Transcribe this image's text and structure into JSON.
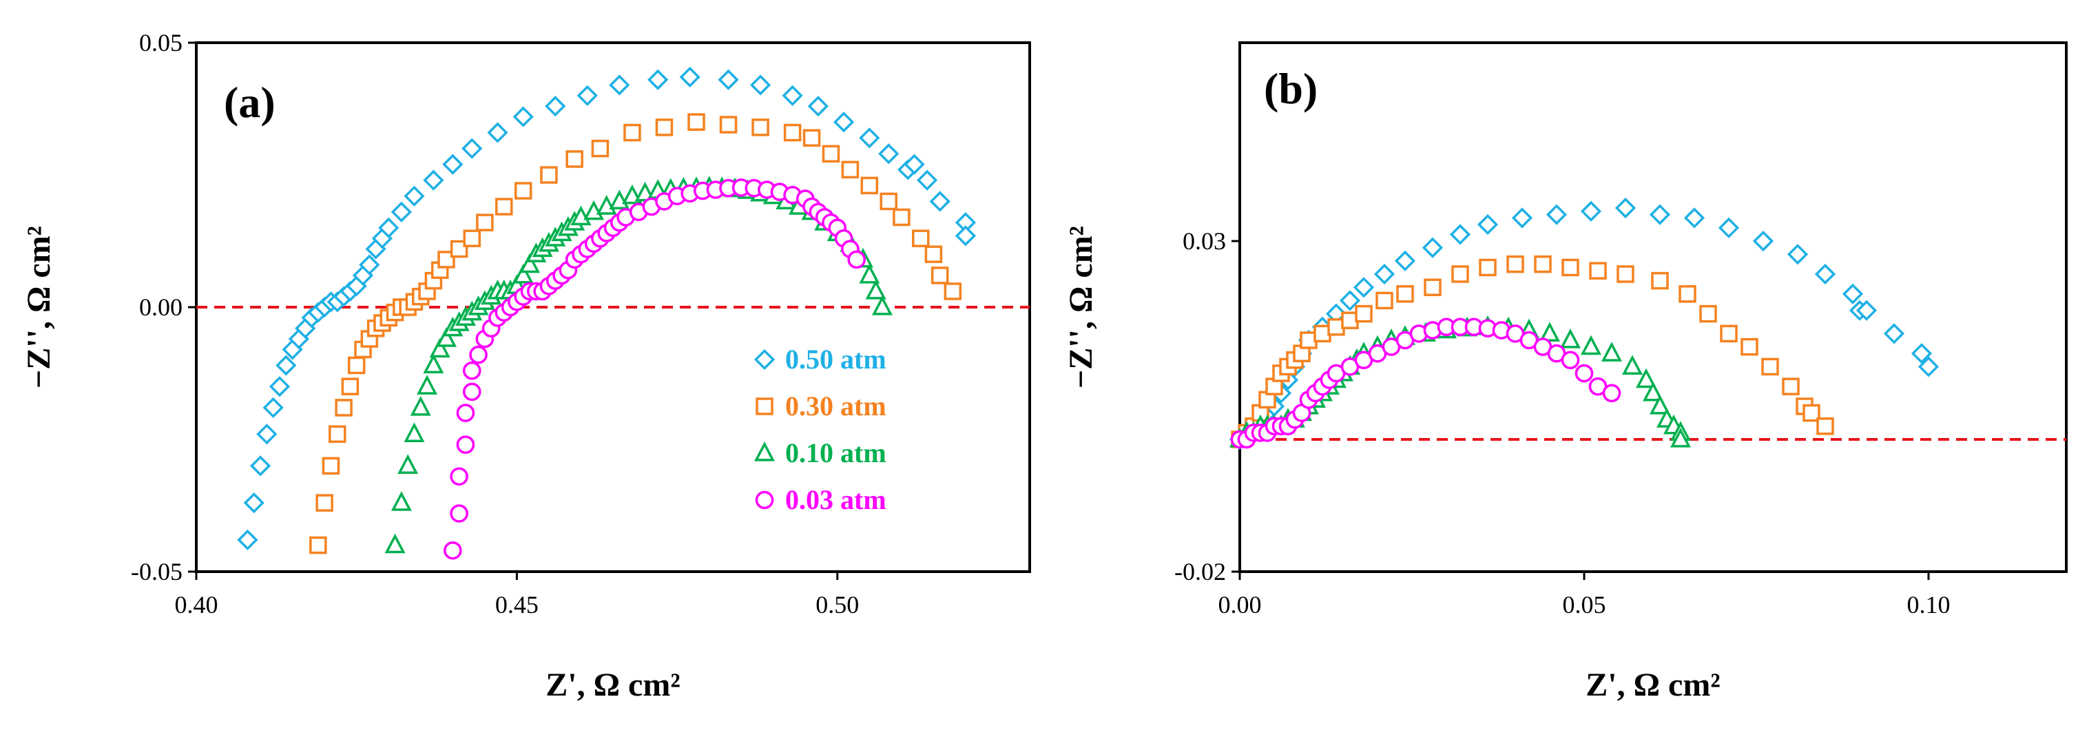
{
  "chart_data": [
    {
      "type": "scatter",
      "panel_label": "(a)",
      "xlabel": "Z', Ω cm²",
      "ylabel": "−Z'', Ω cm²",
      "xlim": [
        0.4,
        0.53
      ],
      "ylim": [
        -0.05,
        0.05
      ],
      "xticks": [
        0.4,
        0.45,
        0.5
      ],
      "xtick_labels": [
        "0.40",
        "0.45",
        "0.50"
      ],
      "yticks": [
        -0.05,
        0.0,
        0.05
      ],
      "ytick_labels": [
        "-0.05",
        "0.00",
        "0.05"
      ],
      "reference_line": {
        "y": 0,
        "style": "dashed",
        "color": "#e8141b"
      },
      "legend": {
        "placement": "lower-right"
      },
      "series": [
        {
          "name": "0.50 atm",
          "marker": "diamond",
          "color": "#1fb0e6",
          "x": [
            0.408,
            0.409,
            0.41,
            0.411,
            0.412,
            0.413,
            0.414,
            0.415,
            0.416,
            0.417,
            0.418,
            0.419,
            0.42,
            0.421,
            0.422,
            0.423,
            0.424,
            0.425,
            0.426,
            0.427,
            0.428,
            0.429,
            0.43,
            0.432,
            0.434,
            0.437,
            0.44,
            0.443,
            0.447,
            0.451,
            0.456,
            0.461,
            0.466,
            0.472,
            0.477,
            0.483,
            0.488,
            0.493,
            0.497,
            0.501,
            0.505,
            0.508,
            0.511,
            0.512,
            0.514,
            0.516,
            0.52,
            0.52
          ],
          "y": [
            -0.044,
            -0.037,
            -0.03,
            -0.024,
            -0.019,
            -0.015,
            -0.011,
            -0.008,
            -0.006,
            -0.004,
            -0.002,
            -0.001,
            0.0,
            0.001,
            0.001,
            0.002,
            0.003,
            0.004,
            0.006,
            0.008,
            0.011,
            0.013,
            0.015,
            0.018,
            0.021,
            0.024,
            0.027,
            0.03,
            0.033,
            0.036,
            0.038,
            0.04,
            0.042,
            0.043,
            0.0435,
            0.043,
            0.042,
            0.04,
            0.038,
            0.035,
            0.032,
            0.029,
            0.026,
            0.027,
            0.024,
            0.02,
            0.016,
            0.0135
          ]
        },
        {
          "name": "0.30 atm",
          "marker": "square",
          "color": "#f58220",
          "x": [
            0.419,
            0.42,
            0.421,
            0.422,
            0.423,
            0.424,
            0.425,
            0.426,
            0.427,
            0.428,
            0.429,
            0.43,
            0.431,
            0.432,
            0.433,
            0.434,
            0.435,
            0.436,
            0.437,
            0.438,
            0.439,
            0.441,
            0.443,
            0.445,
            0.448,
            0.451,
            0.455,
            0.459,
            0.463,
            0.468,
            0.473,
            0.478,
            0.483,
            0.488,
            0.493,
            0.496,
            0.499,
            0.502,
            0.505,
            0.508,
            0.51,
            0.513,
            0.515,
            0.516,
            0.518
          ],
          "y": [
            -0.045,
            -0.037,
            -0.03,
            -0.024,
            -0.019,
            -0.015,
            -0.011,
            -0.008,
            -0.006,
            -0.004,
            -0.003,
            -0.002,
            -0.001,
            0.0,
            0.0,
            0.001,
            0.002,
            0.003,
            0.005,
            0.007,
            0.009,
            0.011,
            0.013,
            0.016,
            0.019,
            0.022,
            0.025,
            0.028,
            0.03,
            0.033,
            0.034,
            0.035,
            0.0345,
            0.034,
            0.033,
            0.032,
            0.029,
            0.026,
            0.023,
            0.02,
            0.017,
            0.013,
            0.01,
            0.006,
            0.003
          ]
        },
        {
          "name": "0.10 atm",
          "marker": "triangle",
          "color": "#00b050",
          "x": [
            0.431,
            0.432,
            0.433,
            0.434,
            0.435,
            0.436,
            0.437,
            0.438,
            0.439,
            0.44,
            0.441,
            0.442,
            0.443,
            0.444,
            0.445,
            0.446,
            0.447,
            0.448,
            0.449,
            0.45,
            0.451,
            0.452,
            0.453,
            0.454,
            0.455,
            0.456,
            0.457,
            0.458,
            0.459,
            0.46,
            0.462,
            0.464,
            0.466,
            0.468,
            0.47,
            0.472,
            0.474,
            0.476,
            0.478,
            0.48,
            0.482,
            0.484,
            0.486,
            0.488,
            0.49,
            0.492,
            0.494,
            0.496,
            0.498,
            0.5,
            0.502,
            0.504,
            0.505,
            0.506,
            0.507
          ],
          "y": [
            -0.045,
            -0.037,
            -0.03,
            -0.024,
            -0.019,
            -0.015,
            -0.011,
            -0.008,
            -0.006,
            -0.004,
            -0.003,
            -0.002,
            -0.001,
            0.0,
            0.001,
            0.002,
            0.003,
            0.003,
            0.003,
            0.004,
            0.006,
            0.008,
            0.01,
            0.011,
            0.012,
            0.013,
            0.014,
            0.015,
            0.016,
            0.017,
            0.018,
            0.019,
            0.02,
            0.021,
            0.0215,
            0.022,
            0.0222,
            0.0224,
            0.0225,
            0.0226,
            0.0225,
            0.0223,
            0.022,
            0.0215,
            0.021,
            0.02,
            0.019,
            0.018,
            0.016,
            0.014,
            0.012,
            0.009,
            0.006,
            0.003,
            0.0
          ]
        },
        {
          "name": "0.03 atm",
          "marker": "circle",
          "color": "#ff00ff",
          "x": [
            0.44,
            0.441,
            0.441,
            0.442,
            0.442,
            0.443,
            0.443,
            0.444,
            0.445,
            0.446,
            0.447,
            0.448,
            0.449,
            0.45,
            0.451,
            0.452,
            0.453,
            0.454,
            0.455,
            0.456,
            0.457,
            0.458,
            0.459,
            0.46,
            0.461,
            0.462,
            0.463,
            0.464,
            0.465,
            0.466,
            0.467,
            0.469,
            0.471,
            0.473,
            0.475,
            0.477,
            0.479,
            0.481,
            0.483,
            0.485,
            0.487,
            0.489,
            0.491,
            0.493,
            0.495,
            0.496,
            0.497,
            0.498,
            0.499,
            0.5,
            0.501,
            0.502,
            0.503
          ],
          "y": [
            -0.046,
            -0.039,
            -0.032,
            -0.026,
            -0.02,
            -0.016,
            -0.012,
            -0.009,
            -0.006,
            -0.004,
            -0.002,
            -0.001,
            0.0,
            0.001,
            0.002,
            0.003,
            0.003,
            0.003,
            0.004,
            0.005,
            0.006,
            0.007,
            0.009,
            0.01,
            0.011,
            0.012,
            0.013,
            0.014,
            0.015,
            0.016,
            0.017,
            0.018,
            0.019,
            0.02,
            0.021,
            0.0215,
            0.022,
            0.0222,
            0.0225,
            0.0226,
            0.0225,
            0.0222,
            0.0218,
            0.0212,
            0.0205,
            0.019,
            0.018,
            0.017,
            0.016,
            0.015,
            0.013,
            0.011,
            0.009
          ]
        }
      ]
    },
    {
      "type": "scatter",
      "panel_label": "(b)",
      "xlabel": "Z', Ω cm²",
      "ylabel": "−Z'', Ω cm²",
      "xlim": [
        0.0,
        0.12
      ],
      "ylim": [
        -0.02,
        0.06
      ],
      "xticks": [
        0.0,
        0.05,
        0.1
      ],
      "xtick_labels": [
        "0.00",
        "0.05",
        "0.10"
      ],
      "yticks": [
        -0.02,
        0.03
      ],
      "ytick_labels": [
        "-0.02",
        "0.03"
      ],
      "reference_line": {
        "y": 0,
        "style": "dashed",
        "color": "#e8141b"
      },
      "series": [
        {
          "name": "0.50 atm",
          "marker": "diamond",
          "color": "#1fb0e6",
          "x": [
            0.0,
            0.001,
            0.002,
            0.003,
            0.004,
            0.005,
            0.006,
            0.007,
            0.008,
            0.009,
            0.01,
            0.012,
            0.014,
            0.016,
            0.018,
            0.021,
            0.024,
            0.028,
            0.032,
            0.036,
            0.041,
            0.046,
            0.051,
            0.056,
            0.061,
            0.066,
            0.071,
            0.076,
            0.081,
            0.085,
            0.089,
            0.09,
            0.091,
            0.095,
            0.099,
            0.1
          ],
          "y": [
            0.0,
            0.001,
            0.002,
            0.003,
            0.004,
            0.005,
            0.007,
            0.009,
            0.011,
            0.013,
            0.015,
            0.017,
            0.019,
            0.021,
            0.023,
            0.025,
            0.027,
            0.029,
            0.031,
            0.0325,
            0.0335,
            0.034,
            0.0345,
            0.035,
            0.034,
            0.0335,
            0.032,
            0.03,
            0.028,
            0.025,
            0.022,
            0.0195,
            0.0195,
            0.016,
            0.013,
            0.011
          ]
        },
        {
          "name": "0.30 atm",
          "marker": "square",
          "color": "#f58220",
          "x": [
            0.0,
            0.001,
            0.002,
            0.003,
            0.004,
            0.005,
            0.006,
            0.007,
            0.008,
            0.009,
            0.01,
            0.012,
            0.014,
            0.016,
            0.018,
            0.021,
            0.024,
            0.028,
            0.032,
            0.036,
            0.04,
            0.044,
            0.048,
            0.052,
            0.056,
            0.061,
            0.065,
            0.068,
            0.071,
            0.074,
            0.077,
            0.08,
            0.082,
            0.083,
            0.085
          ],
          "y": [
            0.0,
            0.001,
            0.002,
            0.004,
            0.006,
            0.008,
            0.01,
            0.011,
            0.012,
            0.013,
            0.015,
            0.016,
            0.017,
            0.018,
            0.019,
            0.021,
            0.022,
            0.023,
            0.025,
            0.026,
            0.0265,
            0.0265,
            0.026,
            0.0255,
            0.025,
            0.024,
            0.022,
            0.019,
            0.016,
            0.014,
            0.011,
            0.008,
            0.005,
            0.004,
            0.002
          ]
        },
        {
          "name": "0.10 atm",
          "marker": "triangle",
          "color": "#00b050",
          "x": [
            0.0,
            0.001,
            0.002,
            0.003,
            0.004,
            0.005,
            0.006,
            0.007,
            0.008,
            0.009,
            0.01,
            0.011,
            0.012,
            0.013,
            0.014,
            0.015,
            0.016,
            0.017,
            0.018,
            0.02,
            0.022,
            0.024,
            0.027,
            0.03,
            0.033,
            0.036,
            0.039,
            0.042,
            0.045,
            0.048,
            0.051,
            0.054,
            0.057,
            0.059,
            0.06,
            0.061,
            0.062,
            0.063,
            0.064,
            0.064
          ],
          "y": [
            0.0,
            0.001,
            0.001,
            0.002,
            0.002,
            0.002,
            0.002,
            0.003,
            0.003,
            0.004,
            0.005,
            0.006,
            0.007,
            0.008,
            0.009,
            0.01,
            0.011,
            0.012,
            0.013,
            0.014,
            0.015,
            0.0155,
            0.016,
            0.0165,
            0.0168,
            0.017,
            0.0168,
            0.0165,
            0.016,
            0.015,
            0.014,
            0.013,
            0.011,
            0.009,
            0.007,
            0.005,
            0.003,
            0.002,
            0.001,
            0.0
          ]
        },
        {
          "name": "0.03 atm",
          "marker": "circle",
          "color": "#ff00ff",
          "x": [
            0.0,
            0.001,
            0.002,
            0.003,
            0.004,
            0.005,
            0.006,
            0.007,
            0.008,
            0.009,
            0.01,
            0.011,
            0.012,
            0.013,
            0.014,
            0.016,
            0.018,
            0.02,
            0.022,
            0.024,
            0.026,
            0.028,
            0.03,
            0.032,
            0.034,
            0.036,
            0.038,
            0.04,
            0.042,
            0.044,
            0.046,
            0.048,
            0.05,
            0.052,
            0.054
          ],
          "y": [
            0.0,
            0.0,
            0.001,
            0.001,
            0.001,
            0.002,
            0.002,
            0.002,
            0.003,
            0.004,
            0.006,
            0.007,
            0.008,
            0.009,
            0.01,
            0.011,
            0.012,
            0.013,
            0.014,
            0.015,
            0.016,
            0.0165,
            0.017,
            0.017,
            0.017,
            0.0168,
            0.0165,
            0.016,
            0.015,
            0.014,
            0.013,
            0.012,
            0.01,
            0.008,
            0.007
          ]
        }
      ]
    }
  ]
}
